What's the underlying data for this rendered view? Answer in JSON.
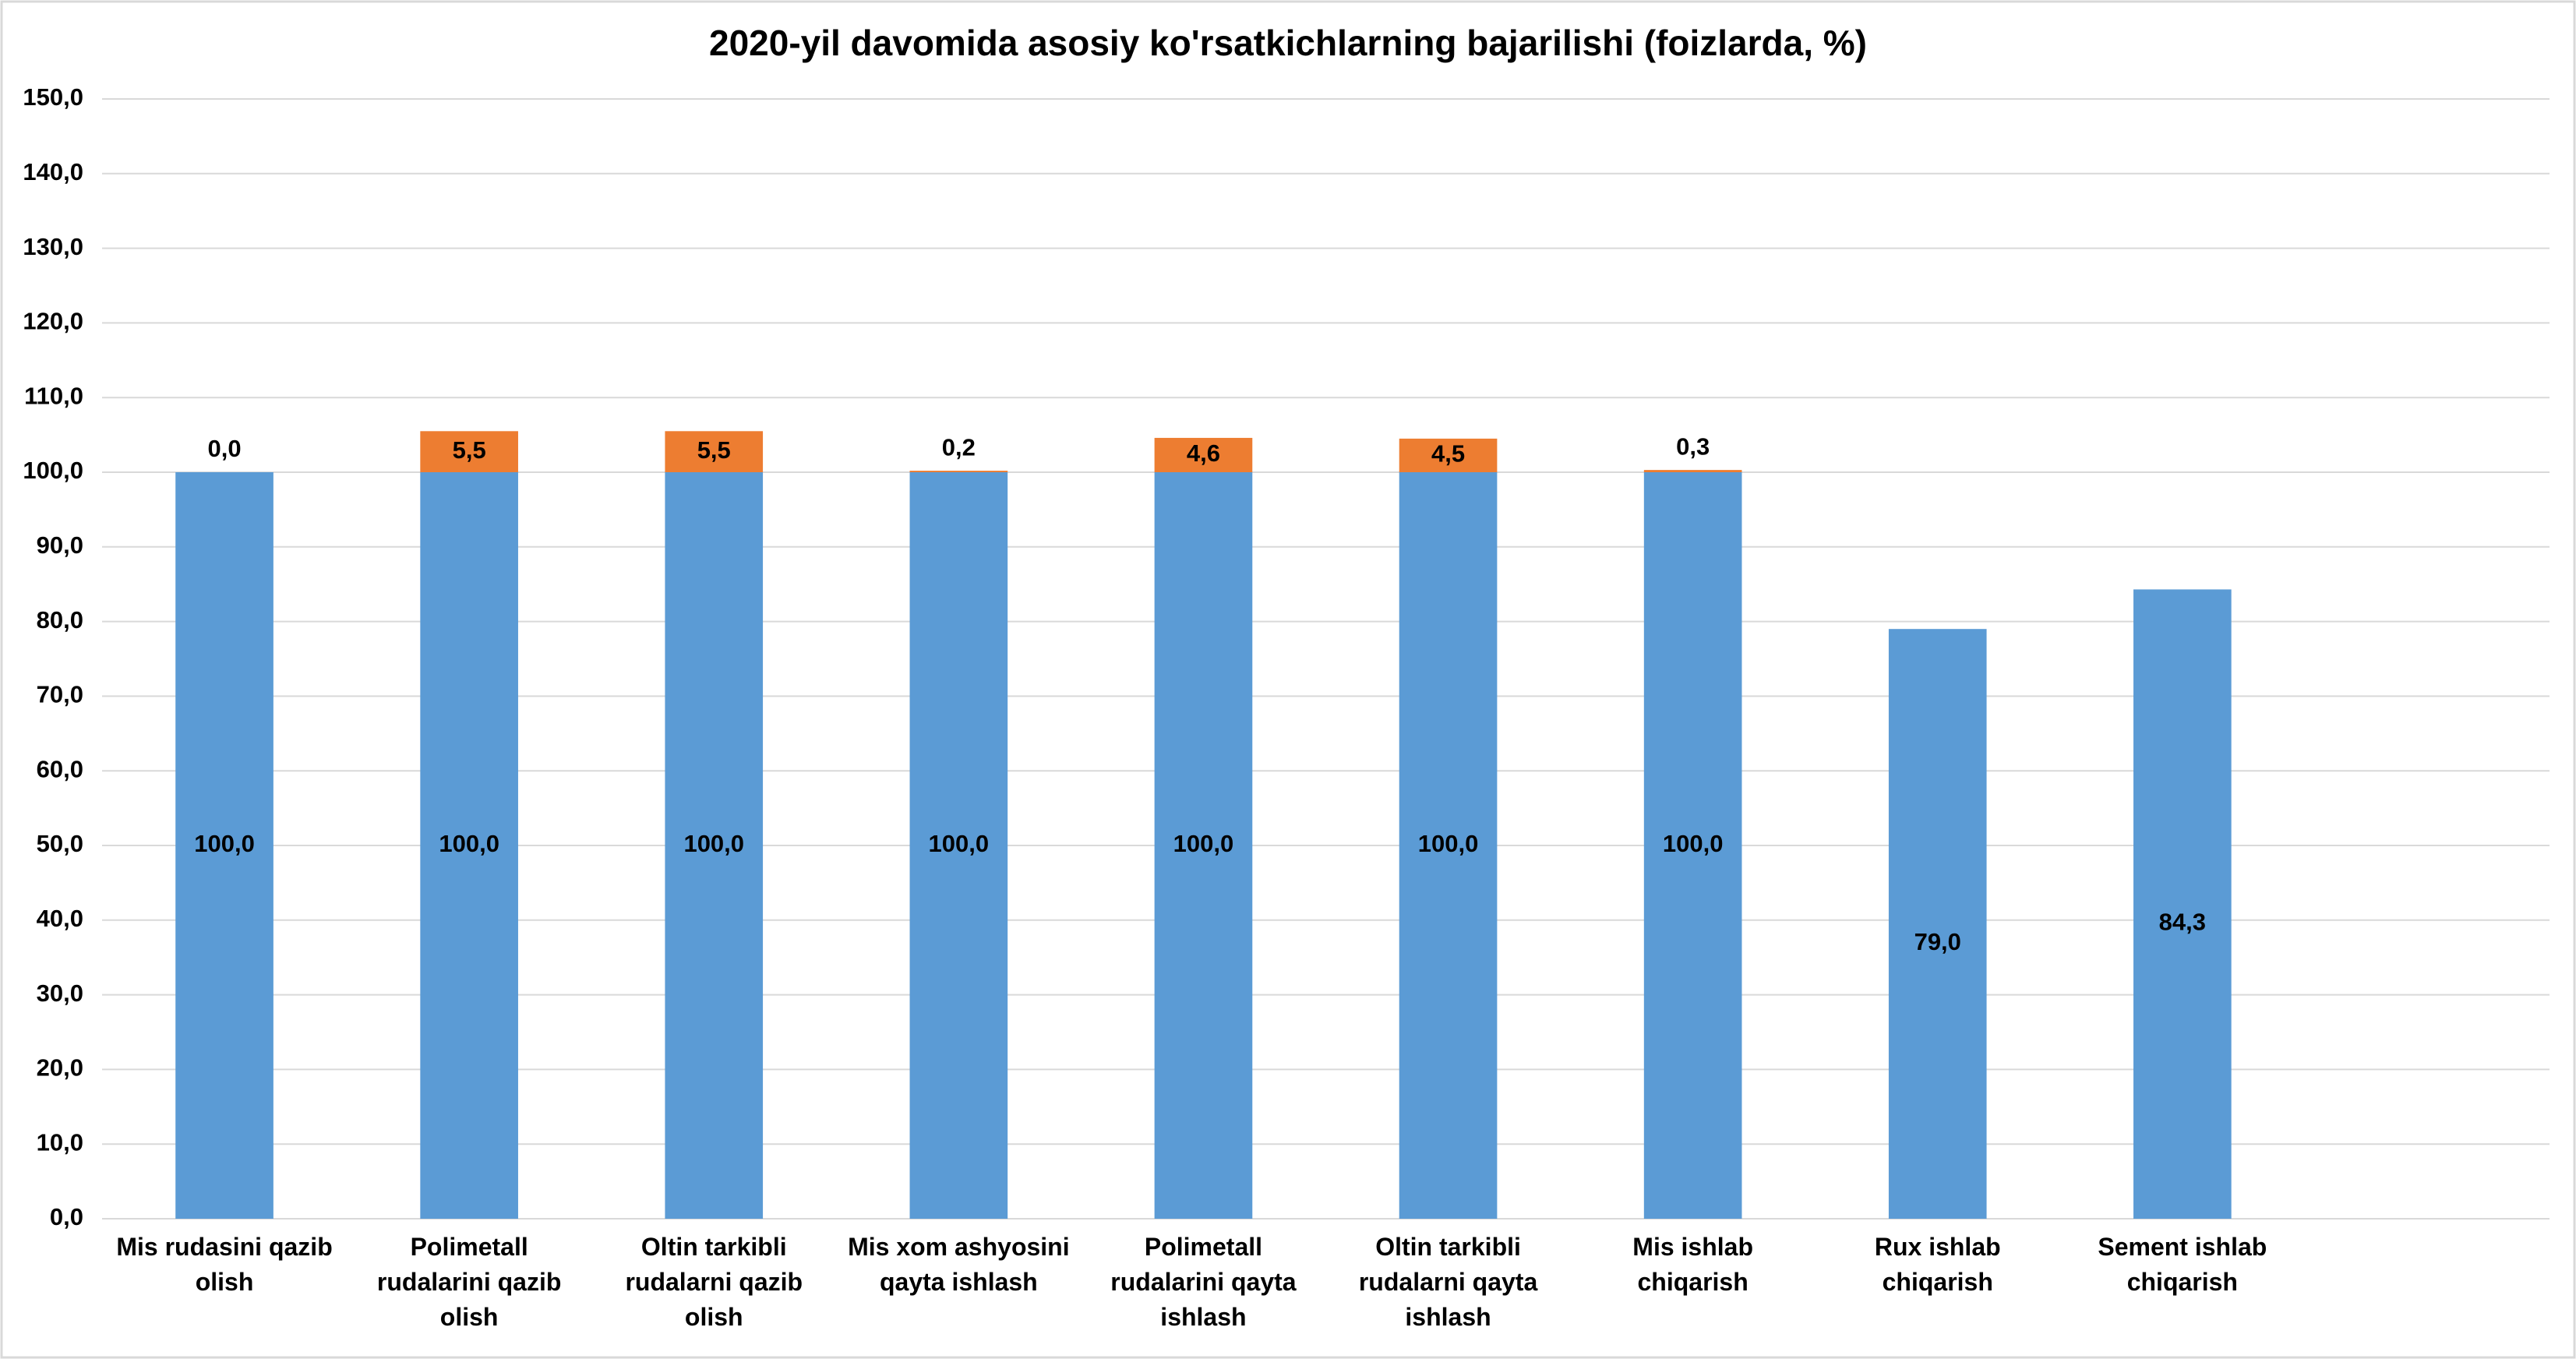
{
  "chart_data": {
    "type": "stacked_bar",
    "title": "2020-yil davomida asosiy ko'rsatkichlarning bajarilishi (foizlarda, %)",
    "categories": [
      "Mis rudasini qazib olish",
      "Polimetall rudalarini qazib olish",
      "Oltin tarkibli rudalarni qazib olish",
      "Mis xom ashyosini qayta ishlash",
      "Polimetall rudalarini qayta ishlash",
      "Oltin tarkibli rudalarni qayta ishlash",
      "Mis ishlab chiqarish",
      "Rux ishlab chiqarish",
      "Sement ishlab chiqarish",
      null
    ],
    "series": [
      {
        "color": "#5b9bd5",
        "values": [
          100,
          100,
          100,
          100,
          100,
          100,
          100,
          79,
          84.3,
          null
        ],
        "value_labels": [
          "100,0",
          "100,0",
          "100,0",
          "100,0",
          "100,0",
          "100,0",
          "100,0",
          "79,0",
          "84,3",
          null
        ]
      },
      {
        "color": "#ed7d31",
        "values": [
          0,
          5.5,
          5.5,
          0.2,
          4.6,
          4.5,
          0.3,
          null,
          null,
          null
        ],
        "value_labels": [
          "0,0",
          "5,5",
          "5,5",
          "0,2",
          "4,6",
          "4,5",
          "0,3",
          null,
          null,
          null
        ]
      }
    ],
    "ylim": [
      0,
      150
    ],
    "yticks": [
      {
        "value": 0,
        "label": "0,0"
      },
      {
        "value": 10,
        "label": "10,0"
      },
      {
        "value": 20,
        "label": "20,0"
      },
      {
        "value": 30,
        "label": "30,0"
      },
      {
        "value": 40,
        "label": "40,0"
      },
      {
        "value": 50,
        "label": "50,0"
      },
      {
        "value": 60,
        "label": "60,0"
      },
      {
        "value": 70,
        "label": "70,0"
      },
      {
        "value": 80,
        "label": "80,0"
      },
      {
        "value": 90,
        "label": "90,0"
      },
      {
        "value": 100,
        "label": "100,0"
      },
      {
        "value": 110,
        "label": "110,0"
      },
      {
        "value": 120,
        "label": "120,0"
      },
      {
        "value": 130,
        "label": "130,0"
      },
      {
        "value": 140,
        "label": "140,0"
      },
      {
        "value": 150,
        "label": "150,0"
      }
    ],
    "grid": true
  }
}
